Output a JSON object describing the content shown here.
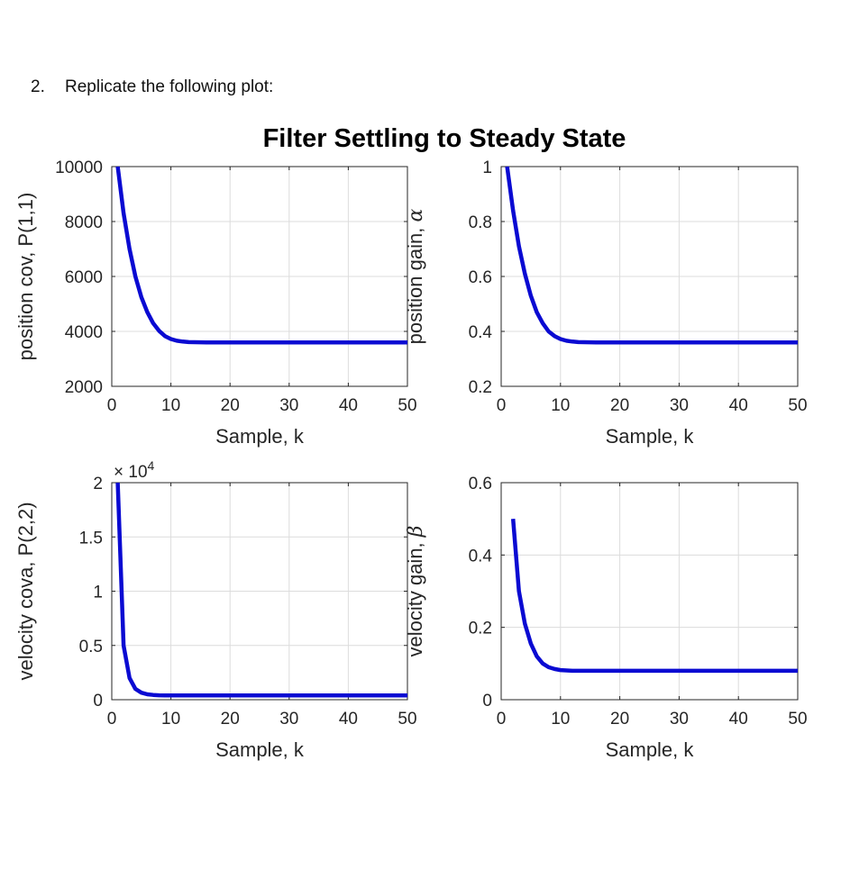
{
  "question": {
    "number": "2.",
    "text": "Replicate the following plot:"
  },
  "line_color": "#0a0ad2",
  "chart_data": {
    "title": "Filter Settling to Steady State",
    "subplots": [
      {
        "type": "line",
        "xlabel": "Sample, k",
        "ylabel": "position cov, P(1,1)",
        "ylabel_greek": "",
        "exponent_label": "",
        "xlim": [
          0,
          50
        ],
        "ylim": [
          2000,
          10000
        ],
        "xticks": [
          0,
          10,
          20,
          30,
          40,
          50
        ],
        "xtick_labels": [
          "0",
          "10",
          "20",
          "30",
          "40",
          "50"
        ],
        "yticks": [
          2000,
          4000,
          6000,
          8000,
          10000
        ],
        "ytick_labels": [
          "2000",
          "4000",
          "6000",
          "8000",
          "10000"
        ],
        "grid": true,
        "series": [
          {
            "x": [
              1,
              2,
              3,
              4,
              5,
              6,
              7,
              8,
              9,
              10,
              11,
              12,
              13,
              14,
              15,
              16,
              17,
              18,
              19,
              20,
              25,
              30,
              35,
              40,
              45,
              50
            ],
            "y": [
              10000,
              8300,
              7000,
              6000,
              5250,
              4700,
              4300,
              4020,
              3830,
              3720,
              3660,
              3630,
              3610,
              3605,
              3602,
              3600,
              3600,
              3600,
              3600,
              3600,
              3600,
              3600,
              3600,
              3600,
              3600,
              3600
            ]
          }
        ]
      },
      {
        "type": "line",
        "xlabel": "Sample, k",
        "ylabel": "position gain, ",
        "ylabel_greek": "α",
        "exponent_label": "",
        "xlim": [
          0,
          50
        ],
        "ylim": [
          0.2,
          1
        ],
        "xticks": [
          0,
          10,
          20,
          30,
          40,
          50
        ],
        "xtick_labels": [
          "0",
          "10",
          "20",
          "30",
          "40",
          "50"
        ],
        "yticks": [
          0.2,
          0.4,
          0.6,
          0.8,
          1
        ],
        "ytick_labels": [
          "0.2",
          "0.4",
          "0.6",
          "0.8",
          "1"
        ],
        "grid": true,
        "series": [
          {
            "x": [
              1,
              2,
              3,
              4,
              5,
              6,
              7,
              8,
              9,
              10,
              11,
              12,
              13,
              14,
              15,
              16,
              17,
              18,
              19,
              20,
              25,
              30,
              35,
              40,
              45,
              50
            ],
            "y": [
              1.0,
              0.84,
              0.71,
              0.61,
              0.53,
              0.47,
              0.43,
              0.4,
              0.383,
              0.372,
              0.366,
              0.363,
              0.361,
              0.3605,
              0.3602,
              0.36,
              0.36,
              0.36,
              0.36,
              0.36,
              0.36,
              0.36,
              0.36,
              0.36,
              0.36,
              0.36
            ]
          }
        ]
      },
      {
        "type": "line",
        "xlabel": "Sample, k",
        "ylabel": "velocity cova, P(2,2)",
        "ylabel_greek": "",
        "exponent_label": "× 10",
        "exponent_power": "4",
        "xlim": [
          0,
          50
        ],
        "ylim": [
          0,
          2
        ],
        "xticks": [
          0,
          10,
          20,
          30,
          40,
          50
        ],
        "xtick_labels": [
          "0",
          "10",
          "20",
          "30",
          "40",
          "50"
        ],
        "yticks": [
          0,
          0.5,
          1,
          1.5,
          2
        ],
        "ytick_labels": [
          "0",
          "0.5",
          "1",
          "1.5",
          "2"
        ],
        "grid": true,
        "series": [
          {
            "x": [
              1,
              2,
              3,
              4,
              5,
              6,
              7,
              8,
              9,
              10,
              11,
              12,
              15,
              20,
              25,
              30,
              35,
              40,
              45,
              50
            ],
            "y": [
              2.0,
              0.5,
              0.2,
              0.1,
              0.065,
              0.05,
              0.044,
              0.041,
              0.04,
              0.04,
              0.04,
              0.04,
              0.04,
              0.04,
              0.04,
              0.04,
              0.04,
              0.04,
              0.04,
              0.04
            ]
          }
        ]
      },
      {
        "type": "line",
        "xlabel": "Sample, k",
        "ylabel": "velocity gain, ",
        "ylabel_greek": "β",
        "exponent_label": "",
        "xlim": [
          0,
          50
        ],
        "ylim": [
          0,
          0.6
        ],
        "xticks": [
          0,
          10,
          20,
          30,
          40,
          50
        ],
        "xtick_labels": [
          "0",
          "10",
          "20",
          "30",
          "40",
          "50"
        ],
        "yticks": [
          0,
          0.2,
          0.4,
          0.6
        ],
        "ytick_labels": [
          "0",
          "0.2",
          "0.4",
          "0.6"
        ],
        "grid": true,
        "series": [
          {
            "x": [
              2,
              3,
              4,
              5,
              6,
              7,
              8,
              9,
              10,
              11,
              12,
              13,
              14,
              15,
              20,
              25,
              30,
              35,
              40,
              45,
              50
            ],
            "y": [
              0.5,
              0.3,
              0.21,
              0.155,
              0.12,
              0.1,
              0.09,
              0.085,
              0.082,
              0.081,
              0.08,
              0.08,
              0.08,
              0.08,
              0.08,
              0.08,
              0.08,
              0.08,
              0.08,
              0.08,
              0.08
            ]
          }
        ]
      }
    ]
  }
}
